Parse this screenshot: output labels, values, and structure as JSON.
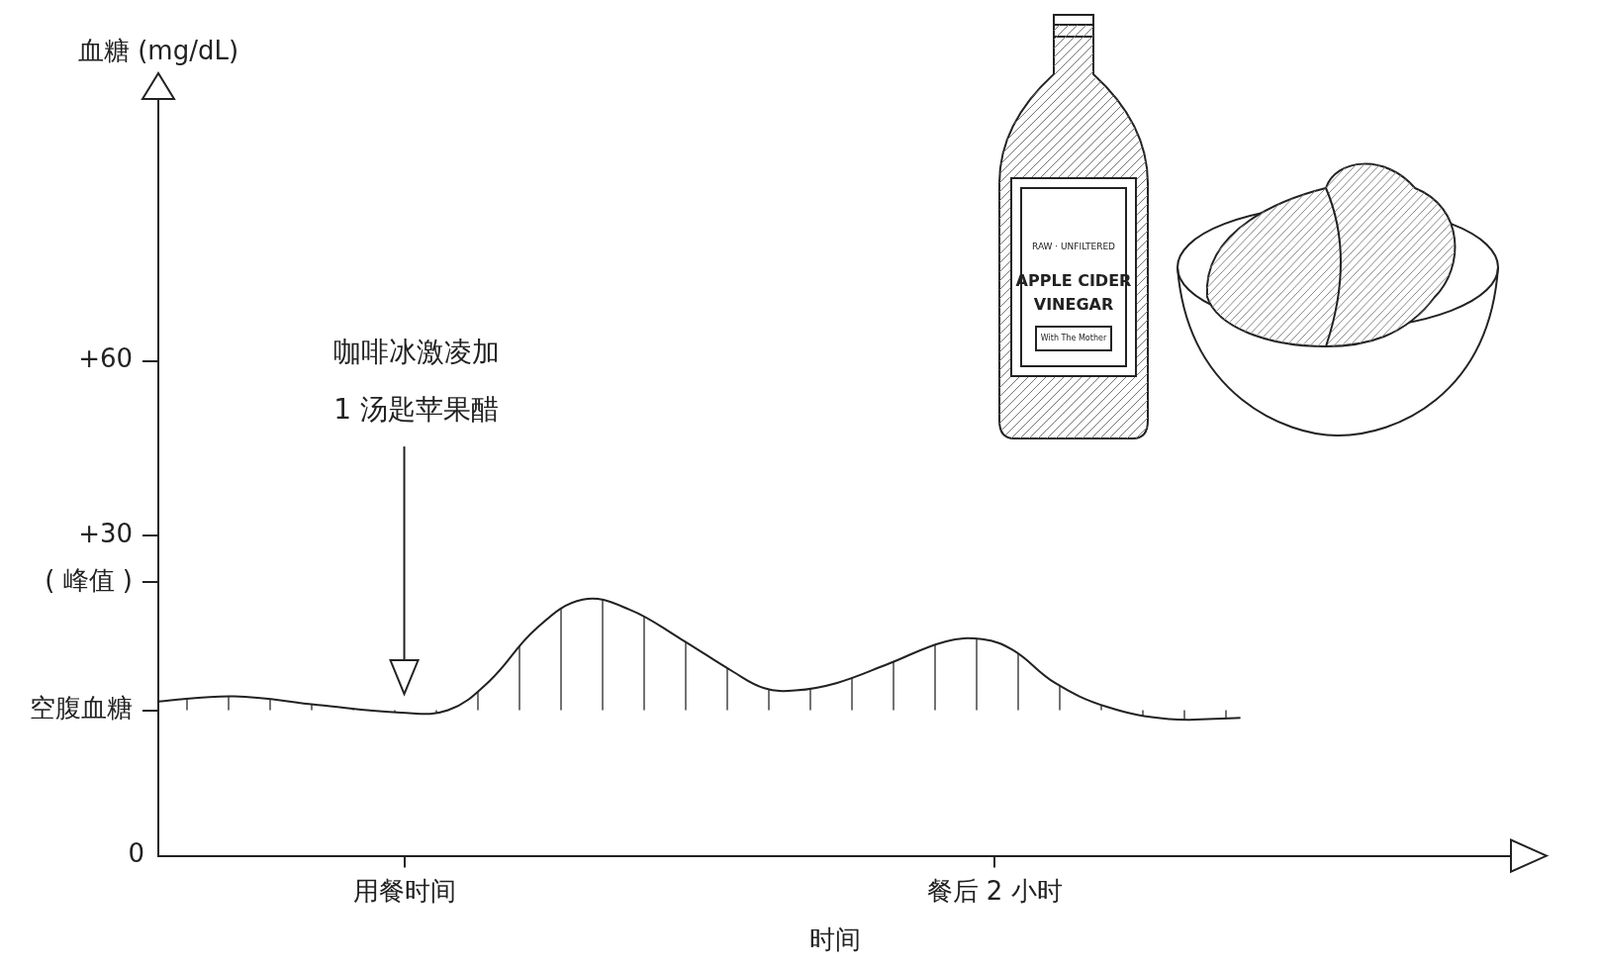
{
  "chart_data": {
    "type": "area",
    "x_label": "时间",
    "y_label": "血糖 (mg/dL)",
    "origin_label": "0",
    "x": [
      -50,
      -34.6,
      -17.5,
      -0.6,
      8.9,
      17.3,
      26.8,
      36.3,
      45.8,
      56.3,
      66.9,
      73.2,
      79.5,
      88,
      98.5,
      110,
      117.5,
      123.8,
      132.3,
      142.8,
      155.5,
      170
    ],
    "values": [
      1.5,
      2.4,
      0.9,
      -0.4,
      0,
      5,
      14,
      19,
      17.3,
      12.2,
      6.6,
      3.8,
      3.4,
      4.7,
      8,
      11.8,
      12.2,
      10.3,
      4.7,
      0.6,
      -1.5,
      -1.3
    ],
    "color": "#222222",
    "xlim": [
      -50,
      225
    ],
    "xticks": [
      {
        "value": 0,
        "label": "用餐时间"
      },
      {
        "value": 120,
        "label": "餐后 2 小时"
      }
    ],
    "ylim": [
      -25,
      105
    ],
    "yticks": [
      {
        "value": 0,
        "label": "空腹血糖"
      },
      {
        "value": 22,
        "label": "( 峰值 )"
      },
      {
        "value": 30,
        "label": "+30"
      },
      {
        "value": 60,
        "label": "+60"
      }
    ],
    "grid": false,
    "annotations": [
      {
        "text": [
          "咖啡冰激凌加",
          "1 汤匙苹果醋"
        ],
        "x": 0,
        "y": 2.8
      }
    ],
    "illustration": {
      "bottle_label": [
        "RAW · UNFILTERED",
        "APPLE CIDER",
        "VINEGAR",
        "With The Mother"
      ]
    }
  }
}
